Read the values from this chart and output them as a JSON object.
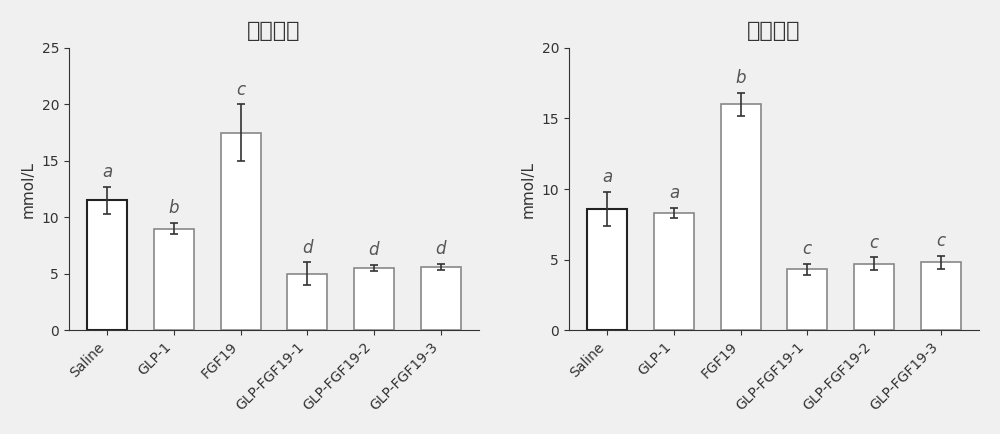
{
  "left_title": "甘油三酯",
  "right_title": "总胆固醇",
  "categories": [
    "Saline",
    "GLP-1",
    "FGF19",
    "GLP-FGF19-1",
    "GLP-FGF19-2",
    "GLP-FGF19-3"
  ],
  "left_values": [
    11.5,
    9.0,
    17.5,
    5.0,
    5.5,
    5.6
  ],
  "left_errors": [
    1.2,
    0.5,
    2.5,
    1.0,
    0.3,
    0.25
  ],
  "left_labels": [
    "a",
    "b",
    "c",
    "d",
    "d",
    "d"
  ],
  "left_ylim": [
    0,
    25
  ],
  "left_yticks": [
    0,
    5,
    10,
    15,
    20,
    25
  ],
  "right_values": [
    8.6,
    8.3,
    16.0,
    4.3,
    4.7,
    4.8
  ],
  "right_errors": [
    1.2,
    0.35,
    0.8,
    0.4,
    0.45,
    0.45
  ],
  "right_labels": [
    "a",
    "a",
    "b",
    "c",
    "c",
    "c"
  ],
  "right_ylim": [
    0,
    20
  ],
  "right_yticks": [
    0,
    5,
    10,
    15,
    20
  ],
  "ylabel": "mmol/L",
  "bar_color": "#ffffff",
  "bar_edge_color_dark": "#222222",
  "bar_edge_color_gray": "#888888",
  "error_color": "#333333",
  "label_color": "#555555",
  "background_color": "#f0f0f0",
  "title_fontsize": 16,
  "label_fontsize": 11,
  "tick_fontsize": 10,
  "stat_label_fontsize": 12
}
